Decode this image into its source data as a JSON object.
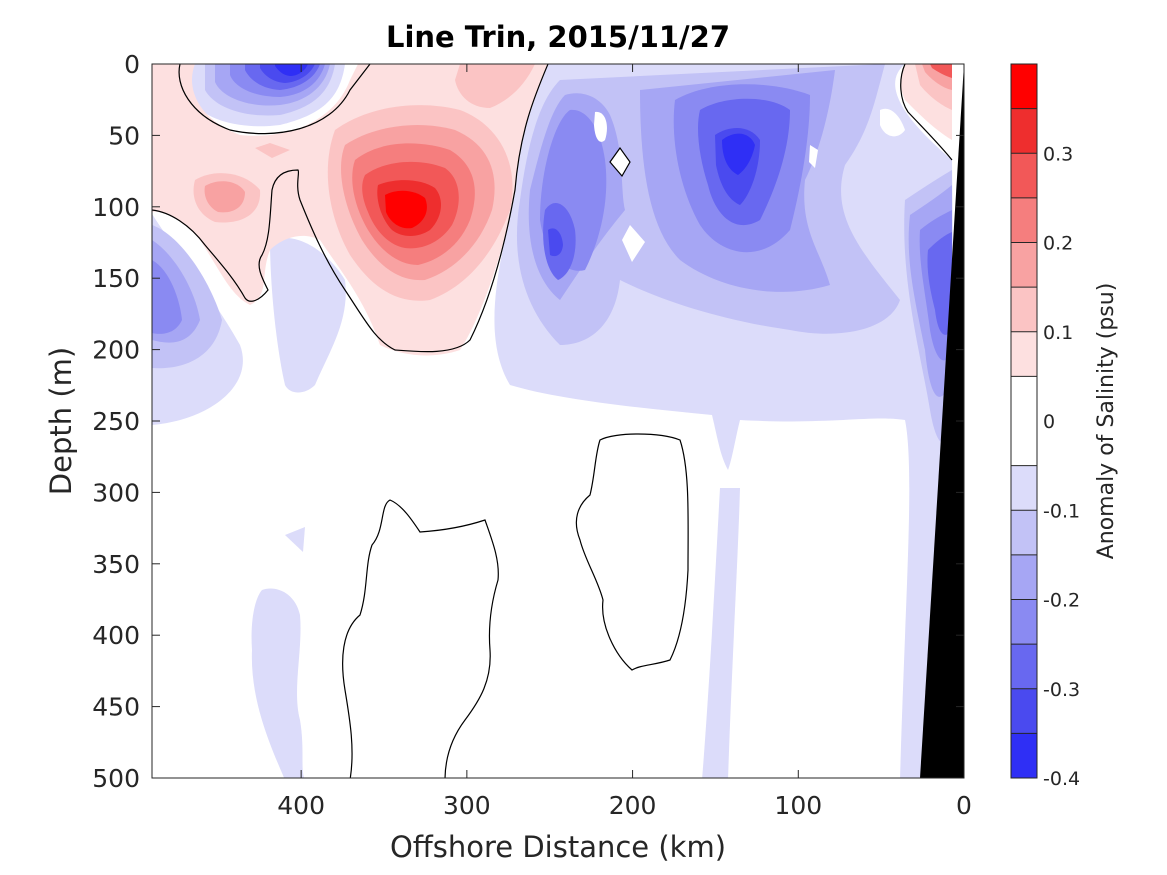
{
  "chart_data": {
    "type": "contour",
    "title": "Line Trin, 2015/11/27",
    "xlabel": "Offshore Distance (km)",
    "ylabel": "Depth (m)",
    "x_axis": {
      "range": [
        490,
        0
      ],
      "reversed": true,
      "ticks": [
        400,
        300,
        200,
        100,
        0
      ]
    },
    "y_axis": {
      "range": [
        0,
        500
      ],
      "reversed": true,
      "ticks": [
        0,
        50,
        100,
        150,
        200,
        250,
        300,
        350,
        400,
        450,
        500
      ]
    },
    "colorbar": {
      "label": "Anomaly of Salinity (psu)",
      "range": [
        -0.4,
        0.4
      ],
      "ticks": [
        -0.4,
        -0.3,
        -0.2,
        -0.1,
        0,
        0.1,
        0.2,
        0.3
      ],
      "tick_labels": [
        "-0.4",
        "-0.3",
        "-0.2",
        "-0.1",
        "0",
        "0.1",
        "0.2",
        "0.3"
      ],
      "levels": [
        -0.4,
        -0.35,
        -0.3,
        -0.25,
        -0.2,
        -0.15,
        -0.1,
        -0.05,
        0.05,
        0.1,
        0.15,
        0.2,
        0.25,
        0.3,
        0.35,
        0.4
      ],
      "colors": [
        "#0a0aff",
        "#2f2ff5",
        "#4a4aef",
        "#6868f0",
        "#8a8af2",
        "#a6a6f4",
        "#c2c2f6",
        "#dcdcfa",
        "#ffffff",
        "#fde0e0",
        "#fbc4c4",
        "#f8a2a2",
        "#f57e7e",
        "#f25858",
        "#ee2e2e",
        "#ff0000"
      ]
    },
    "features": [
      {
        "name": "near-surface fresh anomaly",
        "center_x_km": 400,
        "center_depth_m": 10,
        "peak": -0.35
      },
      {
        "name": "subsurface saline eddy",
        "center_x_km": 340,
        "center_depth_m": 100,
        "peak": 0.38
      },
      {
        "name": "western saline lens",
        "center_x_km": 450,
        "center_depth_m": 85,
        "peak": 0.2
      },
      {
        "name": "near-surface saline patch",
        "center_x_km": 280,
        "center_depth_m": 10,
        "peak": 0.1
      },
      {
        "name": "central fresh band",
        "center_x_km": 240,
        "center_depth_m": 140,
        "peak": -0.3
      },
      {
        "name": "eastern fresh core",
        "center_x_km": 140,
        "center_depth_m": 70,
        "peak": -0.3
      },
      {
        "name": "far-west fresh patch",
        "center_x_km": 475,
        "center_depth_m": 165,
        "peak": -0.25
      },
      {
        "name": "coastal fresh band",
        "center_x_km": 15,
        "center_depth_m": 160,
        "peak": -0.3
      },
      {
        "name": "coastal saline cap",
        "center_x_km": 15,
        "center_depth_m": 10,
        "peak": 0.3
      },
      {
        "name": "bathymetry (land)",
        "color": "#000000"
      }
    ]
  }
}
